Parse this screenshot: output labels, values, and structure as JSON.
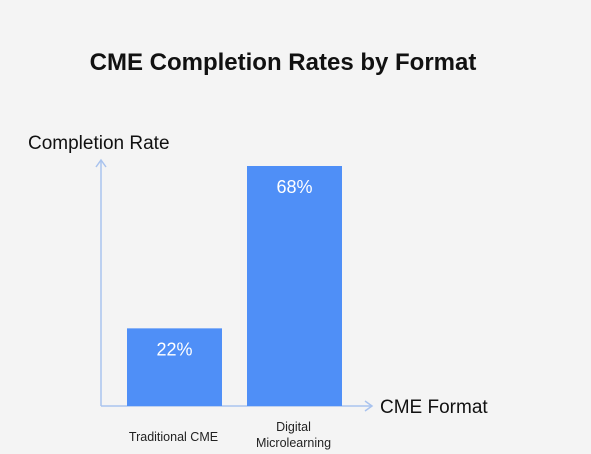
{
  "chart_data": {
    "type": "bar",
    "title": "CME Completion Rates by Format",
    "xlabel": "CME Format",
    "ylabel": "Completion Rate",
    "categories": [
      "Traditional CME",
      "Digital Microlearning"
    ],
    "values": [
      22,
      68
    ],
    "data_labels": [
      "22%",
      "68%"
    ],
    "ylim": [
      0,
      68
    ],
    "grid": false,
    "bar_color": "#4f8ff7",
    "axis_color": "#a9c3ee"
  }
}
